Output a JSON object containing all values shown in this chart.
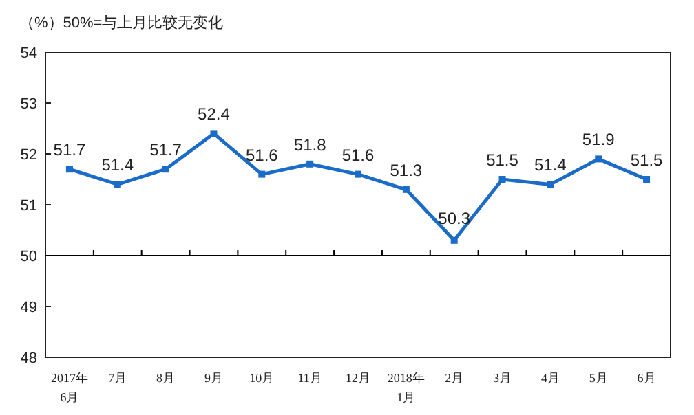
{
  "chart_data": {
    "type": "line",
    "title": "（%）50%=与上月比较无变化",
    "categories": [
      "2017年\n6月",
      "7月",
      "8月",
      "9月",
      "10月",
      "11月",
      "12月",
      "2018年\n1月",
      "2月",
      "3月",
      "4月",
      "5月",
      "6月"
    ],
    "series": [
      {
        "color": "#1a6cc8",
        "values": [
          51.7,
          51.4,
          51.7,
          52.4,
          51.6,
          51.8,
          51.6,
          51.3,
          50.3,
          51.5,
          51.4,
          51.9,
          51.5
        ]
      }
    ],
    "ylim": [
      48,
      54
    ],
    "yticks": [
      48,
      49,
      50,
      51,
      52,
      53,
      54
    ],
    "ref_lines": [
      {
        "axis": "y",
        "value": 50,
        "color": "#000000"
      }
    ],
    "marker": "square",
    "line_style": "solid",
    "data_labels": true,
    "grid": false
  }
}
